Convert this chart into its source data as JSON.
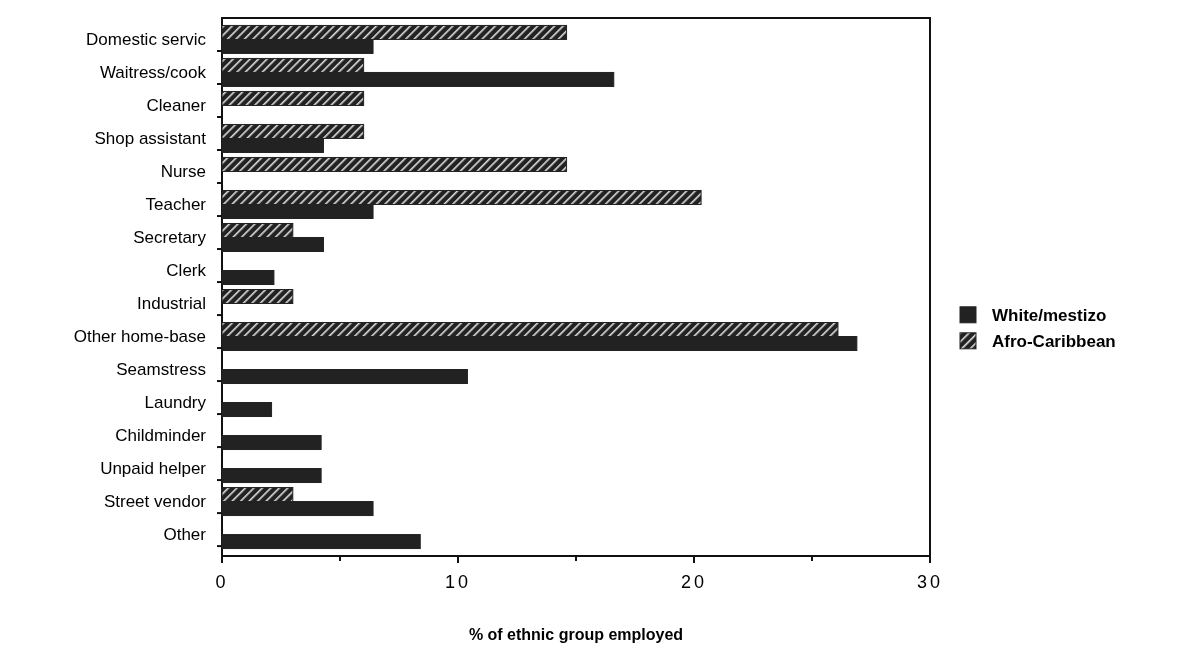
{
  "chart_data": {
    "type": "bar",
    "orientation": "horizontal",
    "xlabel": "% of ethnic group employed",
    "categories": [
      "Domestic servic",
      "Waitress/cook",
      "Cleaner",
      "Shop assistant",
      "Nurse",
      "Teacher",
      "Secretary",
      "Clerk",
      "Industrial",
      "Other home-base",
      "Seamstress",
      "Laundry",
      "Childminder",
      "Unpaid helper",
      "Street vendor",
      "Other"
    ],
    "series": [
      {
        "name": "White/mestizo",
        "color": "#222222",
        "values": [
          6.4,
          16.6,
          null,
          4.3,
          null,
          6.4,
          4.3,
          2.2,
          null,
          26.9,
          10.4,
          2.1,
          4.2,
          4.2,
          6.4,
          8.4
        ]
      },
      {
        "name": "Afro-Caribbean",
        "color": "#222222",
        "values": [
          14.6,
          6.0,
          6.0,
          6.0,
          14.6,
          20.3,
          3.0,
          null,
          3.0,
          26.1,
          null,
          null,
          null,
          null,
          3.0,
          null
        ]
      }
    ],
    "xlim": [
      0,
      30
    ],
    "xticks": [
      0,
      {
        "value": 5,
        "label": null
      },
      10,
      {
        "value": 15,
        "label": null
      },
      20,
      {
        "value": 25,
        "label": null
      },
      30
    ],
    "legend": "right",
    "grid": false
  }
}
